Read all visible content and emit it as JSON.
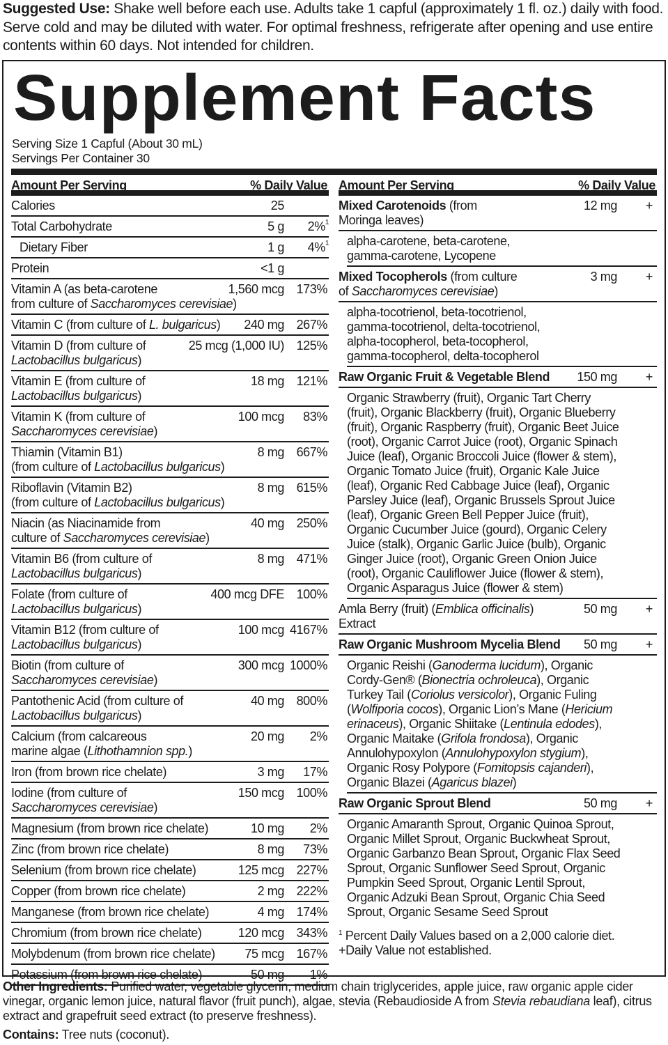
{
  "suggested_use": {
    "label": "Suggested Use:",
    "text": " Shake well before each use. Adults take 1 capful (approximately 1 fl. oz.) daily with food. Serve cold and may be diluted with water. For optimal freshness, refrigerate after opening and use entire contents within 60 days. Not intended for children."
  },
  "title": "Supplement Facts",
  "serving_size": "Serving Size 1 Capful (About 30 mL)",
  "servings_per_container": "Servings Per Container 30",
  "header": {
    "amount": "Amount Per Serving",
    "dv": "% Daily Value"
  },
  "left_rows": [
    {
      "name": [
        [
          "Calories",
          0
        ]
      ],
      "amount": "25",
      "dv": ""
    },
    {
      "name": [
        [
          "Total Carbohydrate",
          0
        ]
      ],
      "amount": "5 g",
      "dv": "2%",
      "sup": "1"
    },
    {
      "name": [
        [
          "Dietary Fiber",
          0
        ]
      ],
      "amount": "1 g",
      "dv": "4%",
      "sup": "1",
      "indent": true
    },
    {
      "name": [
        [
          "Protein",
          0
        ]
      ],
      "amount": "<1 g",
      "dv": ""
    },
    {
      "name": [
        [
          "Vitamin A (as beta-carotene\nfrom culture of ",
          0
        ],
        [
          "Saccharomyces cerevisiae",
          1
        ],
        [
          ")",
          0
        ]
      ],
      "amount": "1,560 mcg",
      "dv": "173%"
    },
    {
      "name": [
        [
          "Vitamin C (from culture of ",
          0
        ],
        [
          "L. bulgaricus",
          1
        ],
        [
          ")",
          0
        ]
      ],
      "amount": "240 mg",
      "dv": "267%"
    },
    {
      "name": [
        [
          "Vitamin D (from culture of\n",
          0
        ],
        [
          "Lactobacillus bulgaricus",
          1
        ],
        [
          ")",
          0
        ]
      ],
      "amount": "25 mcg (1,000 IU)",
      "dv": "125%"
    },
    {
      "name": [
        [
          "Vitamin E (from culture of\n",
          0
        ],
        [
          "Lactobacillus bulgaricus",
          1
        ],
        [
          ")",
          0
        ]
      ],
      "amount": "18 mg",
      "dv": "121%"
    },
    {
      "name": [
        [
          "Vitamin K (from culture of\n",
          0
        ],
        [
          "Saccharomyces cerevisiae",
          1
        ],
        [
          ")",
          0
        ]
      ],
      "amount": "100 mcg",
      "dv": "83%"
    },
    {
      "name": [
        [
          "Thiamin (Vitamin B1)\n(from culture of ",
          0
        ],
        [
          "Lactobacillus bulgaricus",
          1
        ],
        [
          ")",
          0
        ]
      ],
      "amount": "8 mg",
      "dv": "667%"
    },
    {
      "name": [
        [
          "Riboflavin (Vitamin B2)\n(from culture of ",
          0
        ],
        [
          "Lactobacillus bulgaricus",
          1
        ],
        [
          ")",
          0
        ]
      ],
      "amount": "8 mg",
      "dv": "615%"
    },
    {
      "name": [
        [
          "Niacin (as Niacinamide from\nculture of ",
          0
        ],
        [
          "Saccharomyces cerevisiae",
          1
        ],
        [
          ")",
          0
        ]
      ],
      "amount": "40 mg",
      "dv": "250%"
    },
    {
      "name": [
        [
          "Vitamin B6 (from culture of\n",
          0
        ],
        [
          "Lactobacillus bulgaricus",
          1
        ],
        [
          ")",
          0
        ]
      ],
      "amount": "8 mg",
      "dv": "471%"
    },
    {
      "name": [
        [
          "Folate (from culture of\n",
          0
        ],
        [
          "Lactobacillus bulgaricus",
          1
        ],
        [
          ")",
          0
        ]
      ],
      "amount": "400 mcg DFE",
      "dv": "100%"
    },
    {
      "name": [
        [
          "Vitamin B12 (from culture of\n",
          0
        ],
        [
          "Lactobacillus bulgaricus",
          1
        ],
        [
          ")",
          0
        ]
      ],
      "amount": "100 mcg",
      "dv": "4167%"
    },
    {
      "name": [
        [
          "Biotin (from culture of\n",
          0
        ],
        [
          "Saccharomyces cerevisiae",
          1
        ],
        [
          ")",
          0
        ]
      ],
      "amount": "300 mcg",
      "dv": "1000%"
    },
    {
      "name": [
        [
          "Pantothenic Acid (from culture of\n",
          0
        ],
        [
          "Lactobacillus bulgaricus",
          1
        ],
        [
          ")",
          0
        ]
      ],
      "amount": "40 mg",
      "dv": "800%"
    },
    {
      "name": [
        [
          "Calcium (from calcareous\nmarine algae (",
          0
        ],
        [
          "Lithothamnion spp.",
          1
        ],
        [
          ")",
          0
        ]
      ],
      "amount": "20 mg",
      "dv": "2%"
    },
    {
      "name": [
        [
          "Iron (from brown rice chelate)",
          0
        ]
      ],
      "amount": "3 mg",
      "dv": "17%"
    },
    {
      "name": [
        [
          "Iodine (from culture of\n",
          0
        ],
        [
          "Saccharomyces cerevisiae",
          1
        ],
        [
          ")",
          0
        ]
      ],
      "amount": "150 mcg",
      "dv": "100%"
    },
    {
      "name": [
        [
          "Magnesium (from brown rice chelate)",
          0
        ]
      ],
      "amount": "10 mg",
      "dv": "2%"
    },
    {
      "name": [
        [
          "Zinc (from brown rice chelate)",
          0
        ]
      ],
      "amount": "8 mg",
      "dv": "73%"
    },
    {
      "name": [
        [
          "Selenium (from brown rice chelate)",
          0
        ]
      ],
      "amount": "125 mcg",
      "dv": "227%"
    },
    {
      "name": [
        [
          "Copper (from brown rice chelate)",
          0
        ]
      ],
      "amount": "2 mg",
      "dv": "222%"
    },
    {
      "name": [
        [
          "Manganese (from brown rice chelate)",
          0
        ]
      ],
      "amount": "4 mg",
      "dv": "174%"
    },
    {
      "name": [
        [
          "Chromium (from brown rice chelate)",
          0
        ]
      ],
      "amount": "120 mcg",
      "dv": "343%"
    },
    {
      "name": [
        [
          "Molybdenum (from brown rice chelate)",
          0
        ]
      ],
      "amount": "75 mcg",
      "dv": "167%"
    },
    {
      "name": [
        [
          "Potassium (from brown rice chelate)",
          0
        ]
      ],
      "amount": "50 mg",
      "dv": "1%"
    }
  ],
  "right_rows": [
    {
      "name": [
        [
          "Mixed Carotenoids",
          2
        ],
        [
          " (from\nMoringa leaves)",
          0
        ]
      ],
      "amount": "12 mg",
      "dv": "+"
    },
    {
      "sub": true,
      "name": [
        [
          "alpha-carotene, beta-carotene,\ngamma-carotene, Lycopene",
          0
        ]
      ]
    },
    {
      "name": [
        [
          "Mixed Tocopherols",
          2
        ],
        [
          " (from culture\nof ",
          0
        ],
        [
          "Saccharomyces cerevisiae",
          1
        ],
        [
          ")",
          0
        ]
      ],
      "amount": "3 mg",
      "dv": "+"
    },
    {
      "sub": true,
      "name": [
        [
          "alpha-tocotrienol, beta-tocotrienol,\ngamma-tocotrienol, delta-tocotrienol,\nalpha-tocopherol, beta-tocopherol,\ngamma-tocopherol, delta-tocopherol",
          0
        ]
      ]
    },
    {
      "name": [
        [
          "Raw Organic Fruit & Vegetable Blend",
          2
        ]
      ],
      "amount": "150 mg",
      "dv": "+"
    },
    {
      "sub": true,
      "name": [
        [
          "Organic Strawberry (fruit), Organic Tart Cherry\n(fruit), Organic Blackberry (fruit), Organic Blueberry\n(fruit), Organic Raspberry (fruit), Organic Beet Juice\n(root), Organic Carrot Juice (root), Organic Spinach\nJuice (leaf), Organic Broccoli Juice (flower & stem),\nOrganic Tomato Juice (fruit), Organic Kale Juice\n(leaf), Organic Red Cabbage Juice (leaf), Organic\nParsley Juice (leaf), Organic Brussels Sprout Juice\n(leaf), Organic Green Bell Pepper Juice (fruit),\nOrganic Cucumber Juice (gourd), Organic Celery\nJuice (stalk), Organic Garlic Juice (bulb), Organic\nGinger Juice (root), Organic Green Onion Juice\n(root), Organic Cauliflower Juice (flower & stem),\nOrganic Asparagus Juice (flower & stem)",
          0
        ]
      ]
    },
    {
      "name": [
        [
          "Amla Berry (fruit) (",
          0
        ],
        [
          "Emblica officinalis",
          1
        ],
        [
          ")\nExtract",
          0
        ]
      ],
      "amount": "50 mg",
      "dv": "+"
    },
    {
      "name": [
        [
          "Raw Organic Mushroom Mycelia Blend",
          2
        ]
      ],
      "amount": "50 mg",
      "dv": "+"
    },
    {
      "sub": true,
      "name": [
        [
          "Organic Reishi (",
          0
        ],
        [
          "Ganoderma lucidum",
          1
        ],
        [
          "), Organic\nCordy-Gen® (",
          0
        ],
        [
          "Bionectria ochroleuca",
          1
        ],
        [
          "), Organic\nTurkey Tail (",
          0
        ],
        [
          "Coriolus versicolor",
          1
        ],
        [
          "), Organic Fuling\n(",
          0
        ],
        [
          "Wolfiporia cocos",
          1
        ],
        [
          "), Organic Lion’s Mane (",
          0
        ],
        [
          "Hericium\nerinaceus",
          1
        ],
        [
          "), Organic Shiitake (",
          0
        ],
        [
          "Lentinula edodes",
          1
        ],
        [
          "),\nOrganic Maitake (",
          0
        ],
        [
          "Grifola frondosa",
          1
        ],
        [
          "), Organic\nAnnulohypoxylon (",
          0
        ],
        [
          "Annulohypoxylon stygium",
          1
        ],
        [
          "),\nOrganic Rosy Polypore (",
          0
        ],
        [
          "Fomitopsis cajanderi",
          1
        ],
        [
          "),\nOrganic Blazei (",
          0
        ],
        [
          "Agaricus blazei",
          1
        ],
        [
          ")",
          0
        ]
      ]
    },
    {
      "name": [
        [
          "Raw Organic Sprout Blend",
          2
        ]
      ],
      "amount": "50 mg",
      "dv": "+"
    },
    {
      "sub": true,
      "last": true,
      "name": [
        [
          "Organic Amaranth Sprout, Organic Quinoa Sprout,\nOrganic Millet Sprout, Organic Buckwheat Sprout,\nOrganic Garbanzo Bean Sprout, Organic Flax Seed\nSprout, Organic Sunflower Seed Sprout, Organic\nPumpkin Seed Sprout, Organic Lentil Sprout,\nOrganic Adzuki Bean Sprout, Organic Chia Seed\nSprout, Organic Sesame Seed Sprout",
          0
        ]
      ]
    }
  ],
  "footnotes": {
    "sup": "1",
    "percent": " Percent Daily Values based on a 2,000 calorie diet.",
    "not_established": "+Daily Value not established."
  },
  "other_ingredients": {
    "label": "Other Ingredients:",
    "text": [
      [
        " Purified water, vegetable glycerin, medium chain triglycerides, apple juice, raw organic apple cider vinegar, organic lemon juice, natural flavor (fruit punch), algae, stevia (Rebaudioside A from ",
        0
      ],
      [
        "Stevia rebaudiana",
        1
      ],
      [
        " leaf), citrus extract and grapefruit seed extract (to preserve freshness).",
        0
      ]
    ]
  },
  "contains": {
    "label": "Contains:",
    "text": " Tree nuts (coconut)."
  }
}
